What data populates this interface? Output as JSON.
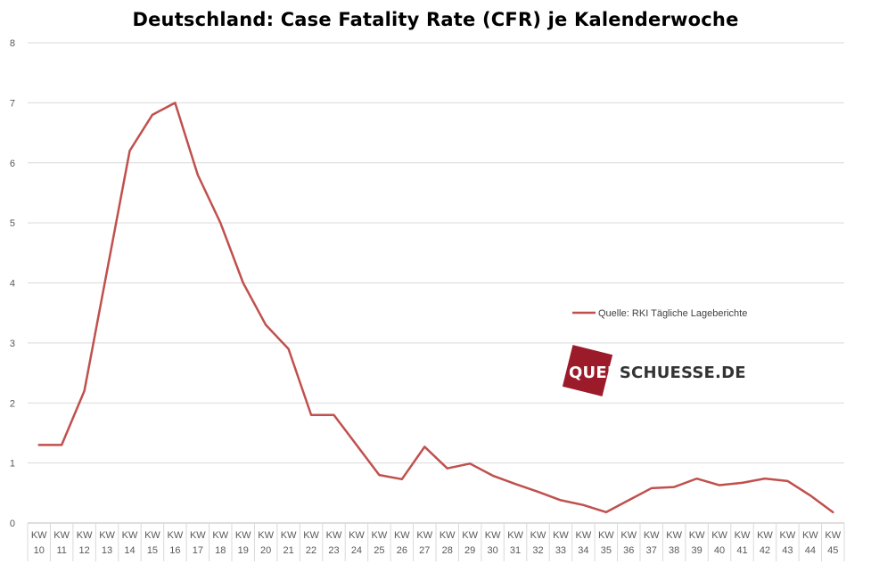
{
  "chart_data": {
    "type": "line",
    "title": "Deutschland: Case Fatality Rate (CFR) je Kalenderwoche",
    "xlabel": "",
    "ylabel": "",
    "ylim": [
      0,
      8
    ],
    "yticks": [
      0,
      1,
      2,
      3,
      4,
      5,
      6,
      7,
      8
    ],
    "grid": true,
    "legend_position": "right",
    "categories": [
      "10",
      "11",
      "12",
      "13",
      "14",
      "15",
      "16",
      "17",
      "18",
      "19",
      "20",
      "21",
      "22",
      "23",
      "24",
      "25",
      "26",
      "27",
      "28",
      "29",
      "30",
      "31",
      "32",
      "33",
      "34",
      "35",
      "36",
      "37",
      "38",
      "39",
      "40",
      "41",
      "42",
      "43",
      "44",
      "45"
    ],
    "category_prefix": "KW",
    "series": [
      {
        "name": "Quelle: RKI Tägliche Lageberichte",
        "color": "#c0504d",
        "values": [
          1.3,
          1.3,
          2.2,
          4.2,
          6.2,
          6.8,
          7.0,
          5.8,
          5.0,
          4.0,
          3.3,
          2.9,
          1.8,
          1.8,
          1.3,
          0.8,
          0.73,
          1.27,
          0.91,
          0.99,
          0.79,
          0.65,
          0.52,
          0.38,
          0.3,
          0.18,
          0.38,
          0.58,
          0.6,
          0.74,
          0.63,
          0.67,
          0.74,
          0.7,
          0.46,
          0.18
        ]
      }
    ]
  },
  "watermark": {
    "part1": "QUER",
    "part2": "SCHUESSE.DE"
  }
}
